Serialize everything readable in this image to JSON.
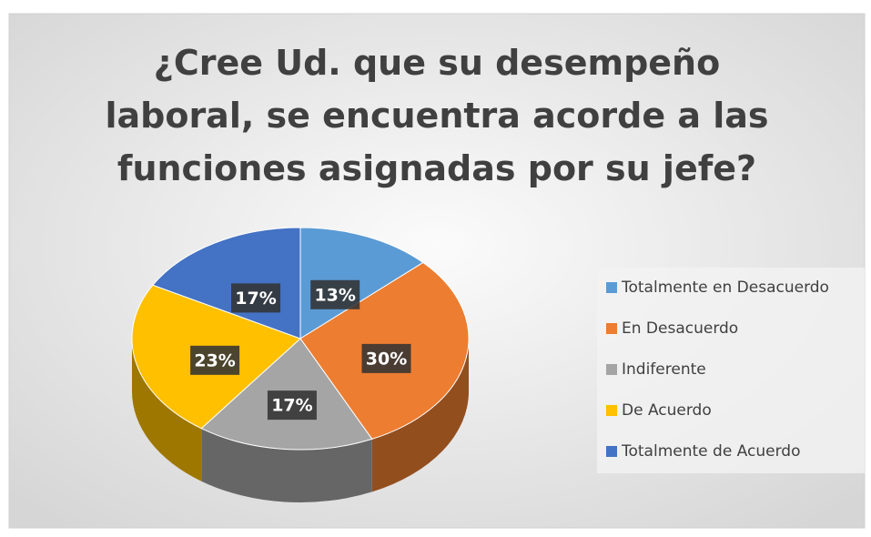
{
  "chart_data": {
    "type": "pie",
    "title": "¿Cree Ud. que su desempeño laboral, se encuentra acorde a las funciones asignadas por su jefe?",
    "categories": [
      "Totalmente en Desacuerdo",
      "En Desacuerdo",
      "Indiferente",
      "De Acuerdo",
      "Totalmente de Acuerdo"
    ],
    "values": [
      13,
      30,
      17,
      23,
      17
    ],
    "value_labels": [
      "13%",
      "30%",
      "17%",
      "23%",
      "17%"
    ],
    "colors": [
      "#5b9bd5",
      "#ed7d31",
      "#a5a5a5",
      "#ffc000",
      "#4472c4"
    ],
    "legend": "right",
    "three_d": true
  }
}
